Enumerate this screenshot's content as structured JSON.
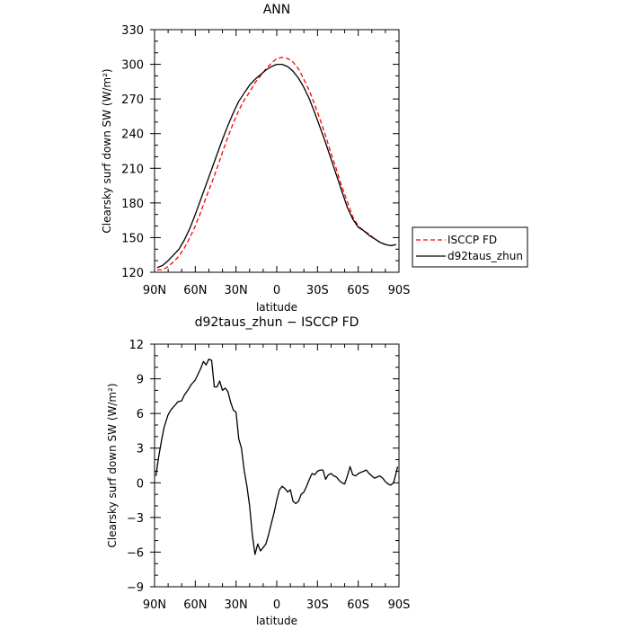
{
  "chart_data": [
    {
      "type": "line",
      "title": "ANN",
      "xlabel": "latitude",
      "ylabel": "Clearsky surf down SW (W/m²)",
      "xticks": [
        "90N",
        "60N",
        "30N",
        "0",
        "30S",
        "60S",
        "90S"
      ],
      "yticks": [
        "120",
        "150",
        "180",
        "210",
        "240",
        "270",
        "300",
        "330"
      ],
      "ylim": [
        120,
        330
      ],
      "xlim": [
        90,
        -90
      ],
      "legend_position": "right",
      "series": [
        {
          "name": "ISCCP FD",
          "color": "#ff0000",
          "dash": "dashed",
          "x": [
            88,
            84,
            80,
            76,
            72,
            68,
            64,
            60,
            56,
            52,
            48,
            44,
            40,
            36,
            32,
            28,
            24,
            20,
            16,
            12,
            8,
            4,
            0,
            -4,
            -8,
            -12,
            -16,
            -20,
            -24,
            -28,
            -32,
            -36,
            -40,
            -44,
            -48,
            -52,
            -56,
            -60,
            -64,
            -68,
            -72,
            -76,
            -80,
            -84,
            -88
          ],
          "values": [
            122,
            122,
            125,
            129,
            134,
            141,
            150,
            160,
            172,
            185,
            197,
            210,
            224,
            237,
            249,
            260,
            269,
            276,
            284,
            290,
            296,
            301,
            305,
            306,
            305,
            302,
            296,
            287,
            277,
            265,
            252,
            238,
            223,
            209,
            194,
            181,
            168,
            160,
            156,
            153,
            149,
            146,
            144,
            143,
            144
          ]
        },
        {
          "name": "d92taus_zhun",
          "color": "#000000",
          "dash": "solid",
          "x": [
            88,
            84,
            80,
            76,
            72,
            68,
            64,
            60,
            56,
            52,
            48,
            44,
            40,
            36,
            32,
            28,
            24,
            20,
            16,
            12,
            8,
            4,
            0,
            -4,
            -8,
            -12,
            -16,
            -20,
            -24,
            -28,
            -32,
            -36,
            -40,
            -44,
            -48,
            -52,
            -56,
            -60,
            -64,
            -68,
            -72,
            -76,
            -80,
            -84,
            -88
          ],
          "values": [
            124,
            126,
            130,
            135,
            140,
            148,
            158,
            170,
            183,
            196,
            209,
            222,
            235,
            247,
            258,
            268,
            275,
            282,
            287,
            291,
            295,
            298,
            300,
            300,
            298,
            294,
            288,
            280,
            270,
            258,
            245,
            232,
            218,
            204,
            190,
            176,
            166,
            159,
            156,
            152,
            149,
            146,
            144,
            143,
            144
          ]
        }
      ]
    },
    {
      "type": "line",
      "title": "d92taus_zhun − ISCCP FD",
      "xlabel": "latitude",
      "ylabel": "Clearsky surf down SW (W/m²)",
      "xticks": [
        "90N",
        "60N",
        "30N",
        "0",
        "30S",
        "60S",
        "90S"
      ],
      "yticks": [
        "−9",
        "−6",
        "−3",
        "0",
        "3",
        "6",
        "9",
        "12"
      ],
      "ylim": [
        -9,
        12
      ],
      "xlim": [
        90,
        -90
      ],
      "series": [
        {
          "name": "d92taus_zhun − ISCCP FD",
          "color": "#000000",
          "dash": "solid",
          "x": [
            89,
            87,
            85,
            83,
            80,
            78,
            75,
            73,
            70,
            68,
            65,
            63,
            60,
            58,
            56,
            54,
            52,
            50,
            48,
            46,
            44,
            42,
            40,
            38,
            36,
            34,
            32,
            30,
            28,
            26,
            24,
            22,
            20,
            18,
            16,
            14,
            12,
            10,
            8,
            6,
            4,
            2,
            0,
            -2,
            -4,
            -6,
            -8,
            -10,
            -12,
            -14,
            -16,
            -18,
            -20,
            -22,
            -24,
            -26,
            -28,
            -30,
            -32,
            -34,
            -36,
            -38,
            -40,
            -42,
            -44,
            -46,
            -48,
            -50,
            -52,
            -54,
            -56,
            -58,
            -60,
            -62,
            -64,
            -66,
            -68,
            -70,
            -72,
            -74,
            -76,
            -78,
            -80,
            -82,
            -84,
            -86,
            -88,
            -89
          ],
          "values": [
            0.6,
            2.2,
            3.6,
            4.8,
            5.9,
            6.3,
            6.7,
            7.0,
            7.1,
            7.6,
            8.1,
            8.5,
            8.9,
            9.4,
            9.9,
            10.5,
            10.2,
            10.7,
            10.6,
            8.3,
            8.3,
            8.8,
            8.0,
            8.2,
            7.9,
            7.0,
            6.3,
            6.1,
            3.8,
            3.0,
            1.1,
            -0.3,
            -2.0,
            -4.5,
            -6.2,
            -5.3,
            -5.9,
            -5.6,
            -5.3,
            -4.5,
            -3.5,
            -2.6,
            -1.5,
            -0.6,
            -0.3,
            -0.5,
            -0.8,
            -0.6,
            -1.6,
            -1.8,
            -1.6,
            -1.0,
            -0.8,
            -0.3,
            0.3,
            0.8,
            0.7,
            1.0,
            1.1,
            1.1,
            0.3,
            0.7,
            0.8,
            0.6,
            0.5,
            0.2,
            0.0,
            -0.1,
            0.6,
            1.4,
            0.7,
            0.6,
            0.8,
            0.9,
            1.0,
            1.1,
            0.8,
            0.6,
            0.4,
            0.5,
            0.6,
            0.4,
            0.1,
            -0.1,
            -0.2,
            0.0,
            0.9,
            1.4
          ]
        }
      ]
    }
  ]
}
